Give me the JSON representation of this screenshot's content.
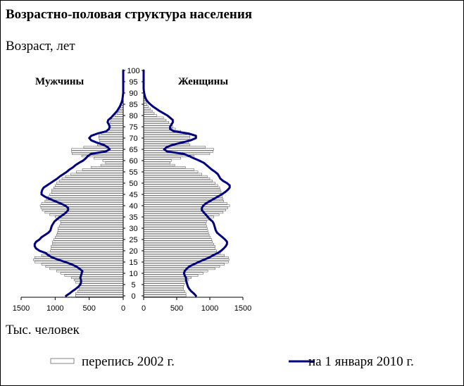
{
  "title": "Возрастно-половая структура населения",
  "ylabel": "Возраст, лет",
  "xlabel": "Тыс. человек",
  "legend": {
    "census": "перепись 2002 г.",
    "current": "на 1 января 2010 г."
  },
  "chart_data": {
    "type": "bar",
    "title": "Возрастно-половая структура населения",
    "ylabel": "Возраст, лет",
    "xlabel": "Тыс. человек",
    "orientation": "horizontal-pyramid",
    "y_ticks": [
      "0",
      "5",
      "10",
      "15",
      "20",
      "25",
      "30",
      "35",
      "40",
      "45",
      "50",
      "55",
      "60",
      "65",
      "70",
      "75",
      "80",
      "85",
      "90",
      "95",
      "100"
    ],
    "x_ticks_left": [
      "1500",
      "1000",
      "500",
      "0"
    ],
    "x_ticks_right": [
      "0",
      "500",
      "1000",
      "1500"
    ],
    "xlim": [
      0,
      1500
    ],
    "ylim": [
      0,
      100
    ],
    "age_step": 1,
    "age_start": 0,
    "side_labels": {
      "left": "Мужчины",
      "right": "Женщины"
    },
    "colors": {
      "census_fill": "#ffffff",
      "census_stroke": "#666666",
      "current_line": "#000080"
    },
    "series": [
      {
        "name": "перепись 2002 г.",
        "kind": "bars",
        "male": [
          700,
          700,
          670,
          650,
          650,
          650,
          700,
          720,
          760,
          860,
          920,
          980,
          1080,
          1140,
          1200,
          1300,
          1320,
          1300,
          1200,
          1120,
          1070,
          1060,
          1060,
          1040,
          1040,
          1020,
          1000,
          980,
          970,
          960,
          960,
          940,
          920,
          920,
          950,
          1000,
          1080,
          1150,
          1190,
          1210,
          1220,
          1200,
          1150,
          1130,
          1100,
          1080,
          1050,
          1050,
          1020,
          1000,
          980,
          940,
          900,
          850,
          770,
          690,
          600,
          470,
          330,
          260,
          300,
          430,
          610,
          750,
          760,
          760,
          580,
          380,
          350,
          350,
          360,
          360,
          320,
          240,
          210,
          200,
          200,
          190,
          180,
          170,
          120,
          90,
          70,
          50,
          35,
          25,
          18,
          12,
          8,
          5,
          3,
          2,
          1,
          0,
          0,
          0,
          0,
          0,
          0,
          0,
          0
        ],
        "female": [
          640,
          640,
          620,
          600,
          600,
          610,
          640,
          680,
          720,
          820,
          900,
          970,
          1080,
          1150,
          1220,
          1280,
          1290,
          1280,
          1220,
          1160,
          1100,
          1080,
          1080,
          1060,
          1040,
          1030,
          1010,
          990,
          980,
          970,
          960,
          950,
          940,
          950,
          980,
          1060,
          1140,
          1200,
          1240,
          1270,
          1300,
          1260,
          1210,
          1200,
          1190,
          1180,
          1170,
          1160,
          1150,
          1120,
          1080,
          1040,
          1000,
          960,
          880,
          820,
          760,
          630,
          470,
          400,
          420,
          560,
          760,
          1000,
          1050,
          1060,
          930,
          700,
          680,
          680,
          700,
          700,
          650,
          560,
          480,
          440,
          420,
          380,
          340,
          300,
          200,
          160,
          130,
          100,
          70,
          50,
          35,
          22,
          15,
          10,
          6,
          4,
          2,
          1,
          0,
          0,
          0,
          0,
          0,
          0,
          0
        ]
      },
      {
        "name": "на 1 января 2010 г.",
        "kind": "line",
        "male": [
          840,
          790,
          750,
          700,
          660,
          630,
          620,
          620,
          630,
          620,
          610,
          600,
          640,
          690,
          760,
          850,
          950,
          1040,
          1100,
          1140,
          1230,
          1280,
          1300,
          1300,
          1280,
          1230,
          1200,
          1150,
          1100,
          1070,
          1060,
          1050,
          1030,
          1010,
          970,
          930,
          880,
          840,
          810,
          810,
          850,
          920,
          1000,
          1080,
          1150,
          1200,
          1200,
          1190,
          1170,
          1120,
          1070,
          1020,
          970,
          930,
          880,
          830,
          790,
          740,
          700,
          650,
          590,
          550,
          520,
          470,
          260,
          200,
          230,
          290,
          390,
          470,
          500,
          470,
          380,
          250,
          210,
          200,
          210,
          230,
          220,
          180,
          150,
          120,
          90,
          70,
          50,
          35,
          22,
          12,
          8,
          4,
          0,
          0,
          0,
          0,
          0,
          0,
          0,
          0,
          0,
          0,
          0
        ],
        "female": [
          790,
          760,
          720,
          690,
          670,
          660,
          650,
          640,
          640,
          620,
          610,
          620,
          650,
          690,
          760,
          830,
          910,
          990,
          1050,
          1120,
          1170,
          1210,
          1240,
          1260,
          1260,
          1230,
          1190,
          1150,
          1110,
          1090,
          1080,
          1070,
          1060,
          1040,
          1000,
          970,
          940,
          910,
          880,
          880,
          900,
          940,
          1000,
          1060,
          1120,
          1180,
          1230,
          1270,
          1300,
          1300,
          1260,
          1200,
          1160,
          1140,
          1120,
          1080,
          1030,
          990,
          950,
          910,
          840,
          760,
          690,
          600,
          360,
          310,
          350,
          440,
          580,
          710,
          790,
          790,
          680,
          460,
          400,
          400,
          420,
          440,
          440,
          400,
          360,
          300,
          240,
          190,
          140,
          100,
          65,
          40,
          25,
          15,
          8,
          3,
          0,
          0,
          0,
          0,
          0,
          0,
          0,
          0,
          0
        ]
      }
    ]
  }
}
